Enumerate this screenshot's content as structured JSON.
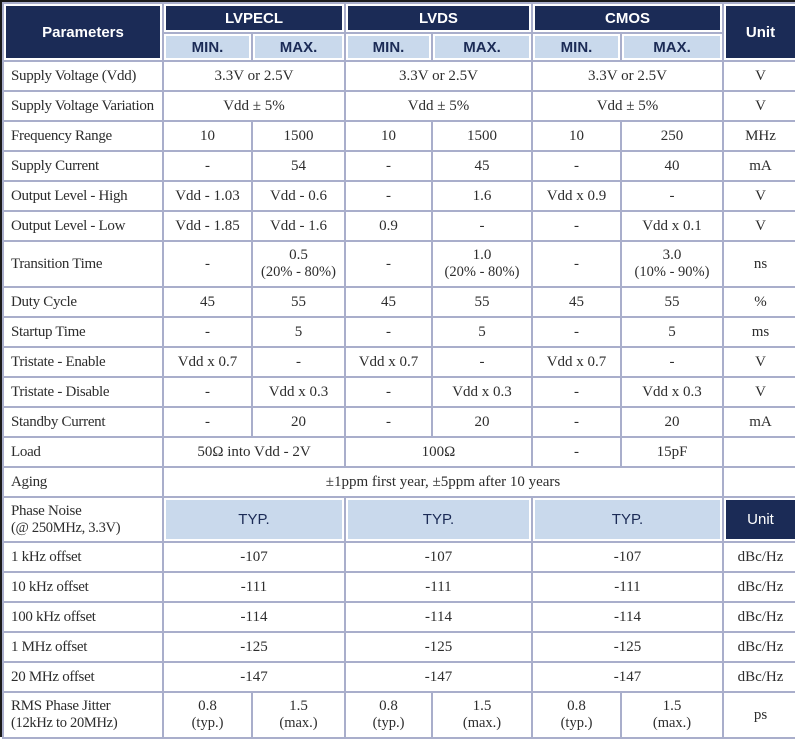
{
  "header": {
    "parameters": "Parameters",
    "groups": [
      "LVPECL",
      "LVDS",
      "CMOS"
    ],
    "sub": [
      "MIN.",
      "MAX.",
      "MIN.",
      "MAX.",
      "MIN.",
      "MAX."
    ],
    "unit": "Unit"
  },
  "colors": {
    "header_navy": "#1b2b56",
    "header_light_blue": "#c9d9ec",
    "grid_line": "#a9aecb",
    "outer_border": "#1b1b1b"
  },
  "rows": [
    {
      "name": "supply-voltage",
      "label": "Supply Voltage (Vdd)",
      "cells": [
        {
          "t": "3.3V or 2.5V",
          "s": 2
        },
        {
          "t": "3.3V or 2.5V",
          "s": 2
        },
        {
          "t": "3.3V or 2.5V",
          "s": 2
        }
      ],
      "unit": "V"
    },
    {
      "name": "supply-voltage-variation",
      "label": "Supply Voltage Variation",
      "cells": [
        {
          "t": "Vdd ± 5%",
          "s": 2
        },
        {
          "t": "Vdd ± 5%",
          "s": 2
        },
        {
          "t": "Vdd ± 5%",
          "s": 2
        }
      ],
      "unit": "V"
    },
    {
      "name": "frequency-range",
      "label": "Frequency Range",
      "cells": [
        {
          "t": "10"
        },
        {
          "t": "1500"
        },
        {
          "t": "10"
        },
        {
          "t": "1500"
        },
        {
          "t": "10"
        },
        {
          "t": "250"
        }
      ],
      "unit": "MHz"
    },
    {
      "name": "supply-current",
      "label": "Supply Current",
      "cells": [
        {
          "t": "-"
        },
        {
          "t": "54"
        },
        {
          "t": "-"
        },
        {
          "t": "45"
        },
        {
          "t": "-"
        },
        {
          "t": "40"
        }
      ],
      "unit": "mA"
    },
    {
      "name": "output-level-high",
      "label": "Output Level - High",
      "cells": [
        {
          "t": "Vdd - 1.03"
        },
        {
          "t": "Vdd - 0.6"
        },
        {
          "t": "-"
        },
        {
          "t": "1.6"
        },
        {
          "t": "Vdd x 0.9"
        },
        {
          "t": "-"
        }
      ],
      "unit": "V"
    },
    {
      "name": "output-level-low",
      "label": "Output Level - Low",
      "cells": [
        {
          "t": "Vdd - 1.85"
        },
        {
          "t": "Vdd - 1.6"
        },
        {
          "t": "0.9"
        },
        {
          "t": "-"
        },
        {
          "t": "-"
        },
        {
          "t": "Vdd x 0.1"
        }
      ],
      "unit": "V"
    },
    {
      "name": "transition-time",
      "label": "Transition Time",
      "tall": true,
      "cells": [
        {
          "t": "-"
        },
        {
          "t": "0.5",
          "t2": "(20% - 80%)"
        },
        {
          "t": "-"
        },
        {
          "t": "1.0",
          "t2": "(20% - 80%)"
        },
        {
          "t": "-"
        },
        {
          "t": "3.0",
          "t2": "(10% - 90%)"
        }
      ],
      "unit": "ns"
    },
    {
      "name": "duty-cycle",
      "label": "Duty Cycle",
      "cells": [
        {
          "t": "45"
        },
        {
          "t": "55"
        },
        {
          "t": "45"
        },
        {
          "t": "55"
        },
        {
          "t": "45"
        },
        {
          "t": "55"
        }
      ],
      "unit": "%"
    },
    {
      "name": "startup-time",
      "label": "Startup Time",
      "cells": [
        {
          "t": "-"
        },
        {
          "t": "5"
        },
        {
          "t": "-"
        },
        {
          "t": "5"
        },
        {
          "t": "-"
        },
        {
          "t": "5"
        }
      ],
      "unit": "ms"
    },
    {
      "name": "tristate-enable",
      "label": "Tristate - Enable",
      "cells": [
        {
          "t": "Vdd x 0.7"
        },
        {
          "t": "-"
        },
        {
          "t": "Vdd x 0.7"
        },
        {
          "t": "-"
        },
        {
          "t": "Vdd x 0.7"
        },
        {
          "t": "-"
        }
      ],
      "unit": "V"
    },
    {
      "name": "tristate-disable",
      "label": "Tristate - Disable",
      "cells": [
        {
          "t": "-"
        },
        {
          "t": "Vdd x 0.3"
        },
        {
          "t": "-"
        },
        {
          "t": "Vdd x 0.3"
        },
        {
          "t": "-"
        },
        {
          "t": "Vdd x 0.3"
        }
      ],
      "unit": "V"
    },
    {
      "name": "standby-current",
      "label": "Standby Current",
      "cells": [
        {
          "t": "-"
        },
        {
          "t": "20"
        },
        {
          "t": "-"
        },
        {
          "t": "20"
        },
        {
          "t": "-"
        },
        {
          "t": "20"
        }
      ],
      "unit": "mA"
    },
    {
      "name": "load",
      "label": "Load",
      "cells": [
        {
          "t": "50Ω into Vdd - 2V",
          "s": 2
        },
        {
          "t": "100Ω",
          "s": 2
        },
        {
          "t": "-"
        },
        {
          "t": "15pF"
        }
      ],
      "unit": ""
    },
    {
      "name": "aging",
      "label": "Aging",
      "cells": [
        {
          "t": "±1ppm first year, ±5ppm after 10 years",
          "s": 6
        }
      ],
      "unit": ""
    },
    {
      "name": "phase-noise-header",
      "section": true,
      "label": "Phase Noise",
      "label2": "(@ 250MHz, 3.3V)",
      "cells": [
        {
          "t": "TYP.",
          "s": 2,
          "h": true
        },
        {
          "t": "TYP.",
          "s": 2,
          "h": true
        },
        {
          "t": "TYP.",
          "s": 2,
          "h": true
        }
      ],
      "unit": "Unit"
    },
    {
      "name": "offset-1khz",
      "label": "1 kHz offset",
      "cells": [
        {
          "t": "-107",
          "s": 2
        },
        {
          "t": "-107",
          "s": 2
        },
        {
          "t": "-107",
          "s": 2
        }
      ],
      "unit": "dBc/Hz"
    },
    {
      "name": "offset-10khz",
      "label": "10 kHz offset",
      "cells": [
        {
          "t": "-111",
          "s": 2
        },
        {
          "t": "-111",
          "s": 2
        },
        {
          "t": "-111",
          "s": 2
        }
      ],
      "unit": "dBc/Hz"
    },
    {
      "name": "offset-100khz",
      "label": "100 kHz offset",
      "cells": [
        {
          "t": "-114",
          "s": 2
        },
        {
          "t": "-114",
          "s": 2
        },
        {
          "t": "-114",
          "s": 2
        }
      ],
      "unit": "dBc/Hz"
    },
    {
      "name": "offset-1mhz",
      "label": "1 MHz offset",
      "cells": [
        {
          "t": "-125",
          "s": 2
        },
        {
          "t": "-125",
          "s": 2
        },
        {
          "t": "-125",
          "s": 2
        }
      ],
      "unit": "dBc/Hz"
    },
    {
      "name": "offset-20mhz",
      "label": "20 MHz offset",
      "cells": [
        {
          "t": "-147",
          "s": 2
        },
        {
          "t": "-147",
          "s": 2
        },
        {
          "t": "-147",
          "s": 2
        }
      ],
      "unit": "dBc/Hz"
    },
    {
      "name": "rms-phase-jitter",
      "label": "RMS Phase Jitter",
      "label2": "(12kHz to 20MHz)",
      "tall": true,
      "cells": [
        {
          "t": "0.8",
          "t2": "(typ.)"
        },
        {
          "t": "1.5",
          "t2": "(max.)"
        },
        {
          "t": "0.8",
          "t2": "(typ.)"
        },
        {
          "t": "1.5",
          "t2": "(max.)"
        },
        {
          "t": "0.8",
          "t2": "(typ.)"
        },
        {
          "t": "1.5",
          "t2": "(max.)"
        }
      ],
      "unit": "ps"
    }
  ]
}
